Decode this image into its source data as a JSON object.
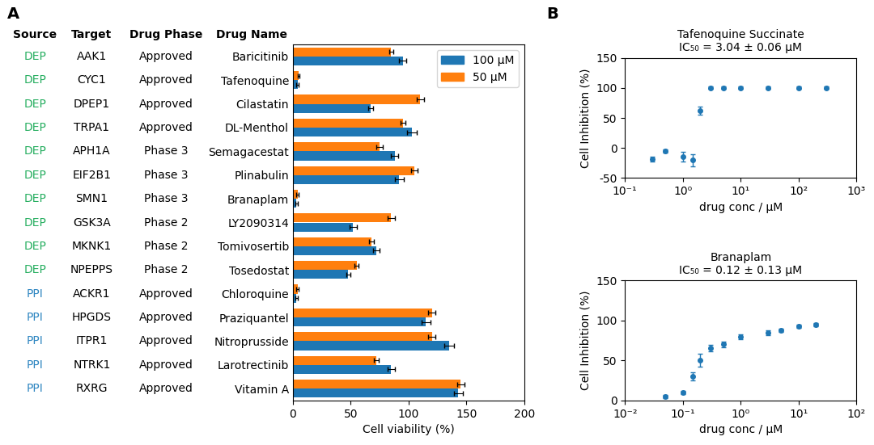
{
  "chart_data": [
    {
      "type": "bar",
      "orientation": "horizontal",
      "panel_label": "A",
      "categories": [
        "Baricitinib",
        "Tafenoquine",
        "Cilastatin",
        "DL-Menthol",
        "Semagacestat",
        "Plinabulin",
        "Branaplam",
        "LY2090314",
        "Tomivosertib",
        "Tosedostat",
        "Chloroquine",
        "Praziquantel",
        "Nitroprusside",
        "Larotrectinib",
        "Vitamin A"
      ],
      "category_header": "Drug Name",
      "table": [
        {
          "header": "Source",
          "values": [
            "DEP",
            "DEP",
            "DEP",
            "DEP",
            "DEP",
            "DEP",
            "DEP",
            "DEP",
            "DEP",
            "DEP",
            "PPI",
            "PPI",
            "PPI",
            "PPI",
            "PPI"
          ],
          "colors": [
            "#27ae60",
            "#27ae60",
            "#27ae60",
            "#27ae60",
            "#27ae60",
            "#27ae60",
            "#27ae60",
            "#27ae60",
            "#27ae60",
            "#27ae60",
            "#2e86c1",
            "#2e86c1",
            "#2e86c1",
            "#2e86c1",
            "#2e86c1"
          ]
        },
        {
          "header": "Target",
          "values": [
            "AAK1",
            "CYC1",
            "DPEP1",
            "TRPA1",
            "APH1A",
            "EIF2B1",
            "SMN1",
            "GSK3A",
            "MKNK1",
            "NPEPPS",
            "ACKR1",
            "HPGDS",
            "ITPR1",
            "NTRK1",
            "RXRG"
          ]
        },
        {
          "header": "Drug Phase",
          "values": [
            "Approved",
            "Approved",
            "Approved",
            "Approved",
            "Phase 3",
            "Phase 3",
            "Phase 3",
            "Phase 2",
            "Phase 2",
            "Phase 2",
            "Approved",
            "Approved",
            "Approved",
            "Approved",
            "Approved"
          ]
        }
      ],
      "series": [
        {
          "name": "100 μM",
          "values": [
            95,
            4,
            67,
            103,
            88,
            92,
            3,
            52,
            72,
            48,
            3,
            115,
            135,
            85,
            143
          ],
          "errors": [
            3,
            1,
            2,
            4,
            3,
            4,
            1,
            3,
            3,
            2,
            1,
            4,
            4,
            3,
            4
          ]
        },
        {
          "name": "50 μM",
          "values": [
            85,
            5,
            110,
            95,
            75,
            105,
            4,
            85,
            68,
            55,
            4,
            120,
            120,
            72,
            145
          ],
          "errors": [
            2,
            1,
            3,
            2,
            3,
            3,
            1,
            3,
            2,
            2,
            1,
            3,
            3,
            2,
            3
          ]
        }
      ],
      "xlabel": "Cell viability (%)",
      "xlim": [
        0,
        200
      ],
      "xticks": [
        0,
        50,
        100,
        150,
        200
      ],
      "legend": "upper right"
    },
    {
      "type": "scatter",
      "panel_label": "B",
      "marker": "o",
      "title": "Tafenoquine Succinate",
      "subtitle": "IC₅₀ = 3.04 ± 0.06 μM",
      "x": [
        0.3,
        0.5,
        1.0,
        1.5,
        2.0,
        3.0,
        5.0,
        10.0,
        30.0,
        100.0,
        300.0
      ],
      "values": [
        -18,
        -5,
        -15,
        -20,
        62,
        100,
        100,
        100,
        100,
        100,
        100
      ],
      "errors": [
        4,
        3,
        8,
        10,
        7,
        2,
        2,
        2,
        2,
        2,
        2
      ],
      "xlabel": "drug conc / μM",
      "ylabel": "Cell Inhibition (%)",
      "log": "x",
      "xlim": [
        0.1,
        1000
      ],
      "xticks": [
        {
          "value": 0.1,
          "label": "10⁻¹"
        },
        {
          "value": 1,
          "label": "10⁰"
        },
        {
          "value": 10,
          "label": "10¹"
        },
        {
          "value": 100,
          "label": "10²"
        },
        {
          "value": 1000,
          "label": "10³"
        }
      ],
      "ylim": [
        -50,
        150
      ],
      "yticks": [
        -50,
        0,
        50,
        100,
        150
      ]
    },
    {
      "type": "scatter",
      "marker": "o",
      "title": "Branaplam",
      "subtitle": "IC₅₀ = 0.12 ± 0.13 μM",
      "x": [
        0.05,
        0.1,
        0.15,
        0.2,
        0.3,
        0.5,
        1.0,
        3.0,
        5.0,
        10.0,
        20.0
      ],
      "values": [
        5,
        10,
        30,
        50,
        65,
        70,
        80,
        85,
        88,
        93,
        95
      ],
      "errors": [
        2,
        2,
        5,
        8,
        4,
        4,
        3,
        3,
        2,
        2,
        2
      ],
      "xlabel": "drug conc / μM",
      "ylabel": "Cell Inhibition (%)",
      "log": "x",
      "xlim": [
        0.01,
        100
      ],
      "xticks": [
        {
          "value": 0.01,
          "label": "10⁻²"
        },
        {
          "value": 0.1,
          "label": "10⁻¹"
        },
        {
          "value": 1,
          "label": "10⁰"
        },
        {
          "value": 10,
          "label": "10¹"
        },
        {
          "value": 100,
          "label": "10²"
        }
      ],
      "ylim": [
        0,
        150
      ],
      "yticks": [
        0,
        50,
        100,
        150
      ]
    }
  ]
}
